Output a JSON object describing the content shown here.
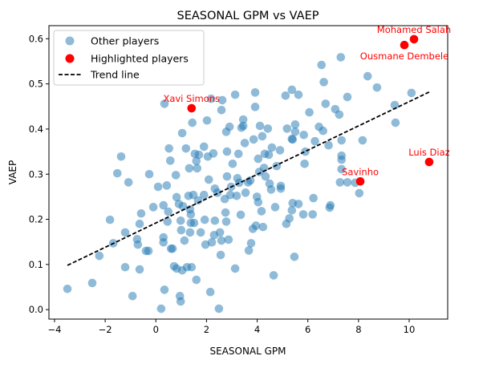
{
  "chart_data": {
    "type": "scatter",
    "title": "SEASONAL GPM vs VAEP",
    "xlabel": "SEASONAL GPM",
    "ylabel": "VAEP",
    "xlim": [
      -4.22,
      11.52
    ],
    "ylim": [
      -0.021,
      0.629
    ],
    "xticks": [
      -4,
      -2,
      0,
      2,
      4,
      6,
      8,
      10
    ],
    "yticks": [
      0.0,
      0.1,
      0.2,
      0.3,
      0.4,
      0.5,
      0.6
    ],
    "xtick_labels": [
      "−4",
      "−2",
      "0",
      "2",
      "4",
      "6",
      "8",
      "10"
    ],
    "ytick_labels": [
      "0.0",
      "0.1",
      "0.2",
      "0.3",
      "0.4",
      "0.5",
      "0.6"
    ],
    "grid": false,
    "legend": {
      "placement": "top-left",
      "entries": [
        "Other players",
        "Highlighted players",
        "Trend line"
      ]
    },
    "colors": {
      "other": "#1f77b4",
      "highlighted": "#ff0000",
      "trend": "#000000",
      "label": "#ff0000"
    },
    "series": [
      {
        "name": "Other players",
        "points": [
          [
            -3.49,
            0.046
          ],
          [
            -2.51,
            0.059
          ],
          [
            -2.23,
            0.119
          ],
          [
            -1.81,
            0.199
          ],
          [
            -1.68,
            0.147
          ],
          [
            -1.52,
            0.302
          ],
          [
            -1.37,
            0.339
          ],
          [
            -1.21,
            0.171
          ],
          [
            -1.21,
            0.094
          ],
          [
            -1.08,
            0.282
          ],
          [
            -0.92,
            0.03
          ],
          [
            -0.74,
            0.156
          ],
          [
            -0.71,
            0.144
          ],
          [
            -0.64,
            0.19
          ],
          [
            -0.64,
            0.089
          ],
          [
            -0.58,
            0.213
          ],
          [
            -0.39,
            0.13
          ],
          [
            -0.29,
            0.13
          ],
          [
            -0.26,
            0.3
          ],
          [
            -0.1,
            0.227
          ],
          [
            0.09,
            0.272
          ],
          [
            0.21,
            0.002
          ],
          [
            0.3,
            0.231
          ],
          [
            0.3,
            0.16
          ],
          [
            0.3,
            0.149
          ],
          [
            0.34,
            0.044
          ],
          [
            0.34,
            0.456
          ],
          [
            0.43,
            0.275
          ],
          [
            0.46,
            0.195
          ],
          [
            0.49,
            0.217
          ],
          [
            0.52,
            0.357
          ],
          [
            0.57,
            0.33
          ],
          [
            0.6,
            0.135
          ],
          [
            0.66,
            0.135
          ],
          [
            0.72,
            0.096
          ],
          [
            0.79,
            0.298
          ],
          [
            0.82,
            0.249
          ],
          [
            0.82,
            0.091
          ],
          [
            0.91,
            0.234
          ],
          [
            0.95,
            0.03
          ],
          [
            0.98,
            0.197
          ],
          [
            0.98,
            0.018
          ],
          [
            1.0,
            0.176
          ],
          [
            1.04,
            0.391
          ],
          [
            1.07,
            0.229
          ],
          [
            1.04,
            0.087
          ],
          [
            1.13,
            0.153
          ],
          [
            1.19,
            0.357
          ],
          [
            1.23,
            0.094
          ],
          [
            1.29,
            0.252
          ],
          [
            1.32,
            0.313
          ],
          [
            1.35,
            0.171
          ],
          [
            1.35,
            0.222
          ],
          [
            1.38,
            0.211
          ],
          [
            1.38,
            0.192
          ],
          [
            1.41,
            0.094
          ],
          [
            1.44,
            0.414
          ],
          [
            1.48,
            0.254
          ],
          [
            1.51,
            0.192
          ],
          [
            1.54,
            0.345
          ],
          [
            1.6,
            0.329
          ],
          [
            1.6,
            0.066
          ],
          [
            1.63,
            0.313
          ],
          [
            1.67,
            0.242
          ],
          [
            1.7,
            0.343
          ],
          [
            1.77,
            0.171
          ],
          [
            1.9,
            0.361
          ],
          [
            1.9,
            0.254
          ],
          [
            1.93,
            0.199
          ],
          [
            1.96,
            0.144
          ],
          [
            2.02,
            0.419
          ],
          [
            2.05,
            0.339
          ],
          [
            2.09,
            0.288
          ],
          [
            2.15,
            0.039
          ],
          [
            2.18,
            0.467
          ],
          [
            2.21,
            0.149
          ],
          [
            2.27,
            0.346
          ],
          [
            2.3,
            0.165
          ],
          [
            2.33,
            0.268
          ],
          [
            2.33,
            0.197
          ],
          [
            2.43,
            0.259
          ],
          [
            2.49,
            0.002
          ],
          [
            2.53,
            0.171
          ],
          [
            2.56,
            0.121
          ],
          [
            2.59,
            0.153
          ],
          [
            2.59,
            0.442
          ],
          [
            2.62,
            0.464
          ],
          [
            2.72,
            0.245
          ],
          [
            2.75,
            0.215
          ],
          [
            2.78,
            0.195
          ],
          [
            2.78,
            0.394
          ],
          [
            2.81,
            0.295
          ],
          [
            2.81,
            0.35
          ],
          [
            2.87,
            0.155
          ],
          [
            2.91,
            0.405
          ],
          [
            2.94,
            0.254
          ],
          [
            2.97,
            0.272
          ],
          [
            3.03,
            0.323
          ],
          [
            3.13,
            0.476
          ],
          [
            3.13,
            0.091
          ],
          [
            3.19,
            0.252
          ],
          [
            3.22,
            0.291
          ],
          [
            3.26,
            0.345
          ],
          [
            3.29,
            0.281
          ],
          [
            3.35,
            0.21
          ],
          [
            3.38,
            0.403
          ],
          [
            3.45,
            0.421
          ],
          [
            3.45,
            0.407
          ],
          [
            3.51,
            0.369
          ],
          [
            3.54,
            0.259
          ],
          [
            3.64,
            0.282
          ],
          [
            3.67,
            0.131
          ],
          [
            3.73,
            0.286
          ],
          [
            3.76,
            0.147
          ],
          [
            3.83,
            0.179
          ],
          [
            3.86,
            0.377
          ],
          [
            3.92,
            0.481
          ],
          [
            3.92,
            0.449
          ],
          [
            3.95,
            0.186
          ],
          [
            3.99,
            0.25
          ],
          [
            4.04,
            0.334
          ],
          [
            4.04,
            0.238
          ],
          [
            4.08,
            0.305
          ],
          [
            4.11,
            0.407
          ],
          [
            4.17,
            0.218
          ],
          [
            4.2,
            0.384
          ],
          [
            4.23,
            0.183
          ],
          [
            4.27,
            0.314
          ],
          [
            4.3,
            0.345
          ],
          [
            4.33,
            0.295
          ],
          [
            4.42,
            0.401
          ],
          [
            4.46,
            0.343
          ],
          [
            4.49,
            0.279
          ],
          [
            4.55,
            0.266
          ],
          [
            4.58,
            0.359
          ],
          [
            4.65,
            0.076
          ],
          [
            4.71,
            0.227
          ],
          [
            4.77,
            0.318
          ],
          [
            4.9,
            0.353
          ],
          [
            4.93,
            0.274
          ],
          [
            4.93,
            0.268
          ],
          [
            5.12,
            0.474
          ],
          [
            5.15,
            0.19
          ],
          [
            5.18,
            0.401
          ],
          [
            5.27,
            0.202
          ],
          [
            5.37,
            0.487
          ],
          [
            5.37,
            0.378
          ],
          [
            5.37,
            0.22
          ],
          [
            5.4,
            0.236
          ],
          [
            5.4,
            0.377
          ],
          [
            5.47,
            0.117
          ],
          [
            5.5,
            0.41
          ],
          [
            5.5,
            0.394
          ],
          [
            5.63,
            0.476
          ],
          [
            5.63,
            0.234
          ],
          [
            5.82,
            0.211
          ],
          [
            5.84,
            0.387
          ],
          [
            5.87,
            0.323
          ],
          [
            5.9,
            0.35
          ],
          [
            6.06,
            0.437
          ],
          [
            6.19,
            0.211
          ],
          [
            6.22,
            0.247
          ],
          [
            6.28,
            0.373
          ],
          [
            6.44,
            0.405
          ],
          [
            6.54,
            0.542
          ],
          [
            6.6,
            0.396
          ],
          [
            6.63,
            0.504
          ],
          [
            6.7,
            0.456
          ],
          [
            6.82,
            0.364
          ],
          [
            6.86,
            0.226
          ],
          [
            6.89,
            0.231
          ],
          [
            7.08,
            0.444
          ],
          [
            7.24,
            0.432
          ],
          [
            7.27,
            0.282
          ],
          [
            7.3,
            0.559
          ],
          [
            7.33,
            0.375
          ],
          [
            7.33,
            0.332
          ],
          [
            7.33,
            0.311
          ],
          [
            7.33,
            0.341
          ],
          [
            7.56,
            0.471
          ],
          [
            7.56,
            0.282
          ],
          [
            7.87,
            0.281
          ],
          [
            8.03,
            0.258
          ],
          [
            8.16,
            0.375
          ],
          [
            8.36,
            0.517
          ],
          [
            8.73,
            0.492
          ],
          [
            9.43,
            0.453
          ],
          [
            9.46,
            0.414
          ],
          [
            10.09,
            0.48
          ]
        ]
      },
      {
        "name": "Highlighted players",
        "points": [
          {
            "label": "Mohamed Salah",
            "x": 10.19,
            "y": 0.599,
            "label_pos": "above"
          },
          {
            "label": "Ousmane Dembele",
            "x": 9.81,
            "y": 0.586,
            "label_pos": "below"
          },
          {
            "label": "Xavi Simons",
            "x": 1.41,
            "y": 0.446,
            "label_pos": "above"
          },
          {
            "label": "Savinho",
            "x": 8.07,
            "y": 0.284,
            "label_pos": "above"
          },
          {
            "label": "Luis Diaz",
            "x": 10.79,
            "y": 0.327,
            "label_pos": "above"
          }
        ]
      },
      {
        "name": "Trend line",
        "style": "dashed",
        "points": [
          [
            -3.49,
            0.098
          ],
          [
            10.79,
            0.482
          ]
        ]
      }
    ]
  }
}
